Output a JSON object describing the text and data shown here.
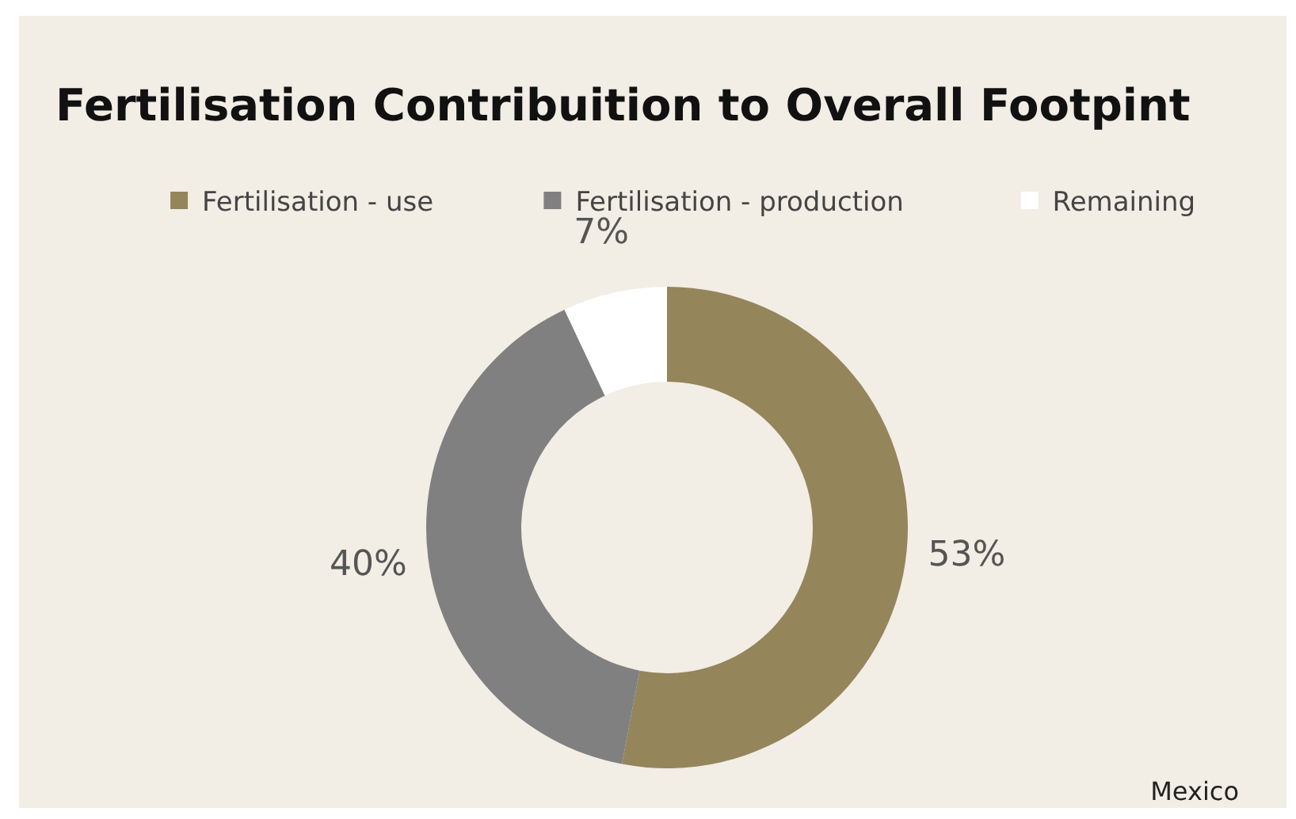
{
  "chart_data": {
    "type": "donut",
    "title": "Fertilisation Contribuition to Overall Footpint",
    "categories": [
      "Fertilisation - use",
      "Fertilisation - production",
      "Remaining"
    ],
    "values": [
      53,
      40,
      7
    ],
    "colors": [
      "#94855b",
      "#808080",
      "#ffffff"
    ],
    "value_labels": [
      "53%",
      "40%",
      "7%"
    ],
    "legend": "top",
    "annotations": [
      "Mexico"
    ]
  }
}
